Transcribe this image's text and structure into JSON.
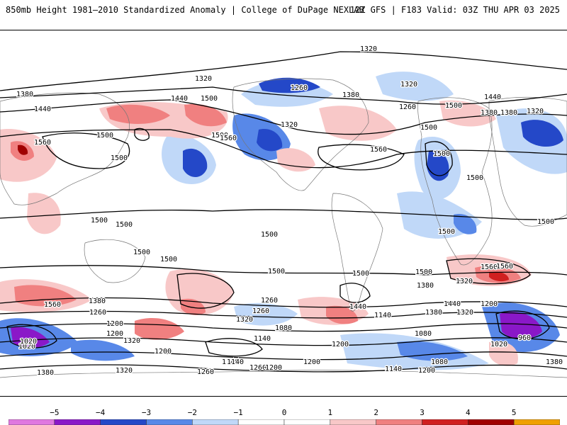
{
  "header": {
    "title": "850mb Height 1981–2010 Standardized Anomaly | College of DuPage NEXLAB",
    "valid": "12Z GFS | F183 Valid: 03Z THU APR 03 2025"
  },
  "colors": {
    "neg5": "#e078e0",
    "neg4": "#8a18c8",
    "neg3": "#2448c8",
    "neg2": "#5888e8",
    "neg1": "#c0d8f8",
    "zero": "#ffffff",
    "pos1": "#f8c8c8",
    "pos2": "#f08080",
    "pos3": "#d02020",
    "pos4": "#a00000",
    "pos5": "#f0a000"
  },
  "colorbar": {
    "ticks": [
      "−5",
      "−4",
      "−3",
      "−2",
      "−1",
      "0",
      "1",
      "2",
      "3",
      "4",
      "5"
    ]
  },
  "contour_labels": [
    "1320",
    "1380",
    "1440",
    "1500",
    "1560",
    "1500",
    "1500",
    "1560",
    "1500",
    "1320",
    "1320",
    "1260",
    "1380",
    "1440",
    "1500",
    "1560",
    "1500",
    "1500",
    "1320",
    "1380",
    "1320",
    "1260",
    "1440",
    "1380",
    "1500",
    "1500",
    "1500",
    "1500",
    "1500",
    "1500",
    "1500",
    "1500",
    "1560",
    "1440",
    "1380",
    "1260",
    "1200",
    "1320",
    "1260",
    "1200",
    "1140",
    "1380",
    "1320",
    "1260",
    "1140",
    "1080",
    "1200",
    "1020",
    "1440",
    "1380",
    "1320",
    "1200",
    "960",
    "1260",
    "1320",
    "1200",
    "1140",
    "1200",
    "1260",
    "1200",
    "1080",
    "1380",
    "1140",
    "1200",
    "1380",
    "1320",
    "1140",
    "1080",
    "1560",
    "1500",
    "1500",
    "1560",
    "1500",
    "1020",
    "1020"
  ]
}
